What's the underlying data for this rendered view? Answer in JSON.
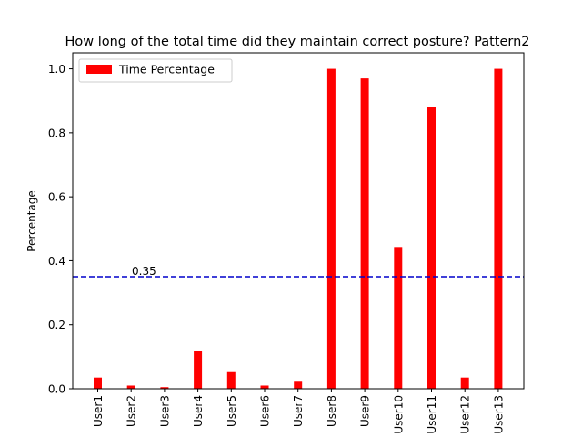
{
  "chart_data": {
    "type": "bar",
    "title": "How long of the total time did they maintain correct posture? Pattern2",
    "xlabel": "",
    "ylabel": "Percentage",
    "categories": [
      "User1",
      "User2",
      "User3",
      "User4",
      "User5",
      "User6",
      "User7",
      "User8",
      "User9",
      "User10",
      "User11",
      "User12",
      "User13"
    ],
    "series": [
      {
        "name": "Time Percentage",
        "color": "#ff0000",
        "values": [
          0.035,
          0.01,
          0.005,
          0.118,
          0.052,
          0.01,
          0.022,
          1.0,
          0.97,
          0.443,
          0.88,
          0.035,
          1.0
        ]
      }
    ],
    "ylim": [
      0,
      1.05
    ],
    "yticks": [
      0.0,
      0.2,
      0.4,
      0.6,
      0.8,
      1.0
    ],
    "ytick_labels": [
      "0.0",
      "0.2",
      "0.4",
      "0.6",
      "0.8",
      "1.0"
    ],
    "grid": false,
    "legend_position": "top-left",
    "threshold": {
      "value": 0.35,
      "label": "0.35",
      "color": "#0000cc",
      "style": "dashed"
    }
  }
}
